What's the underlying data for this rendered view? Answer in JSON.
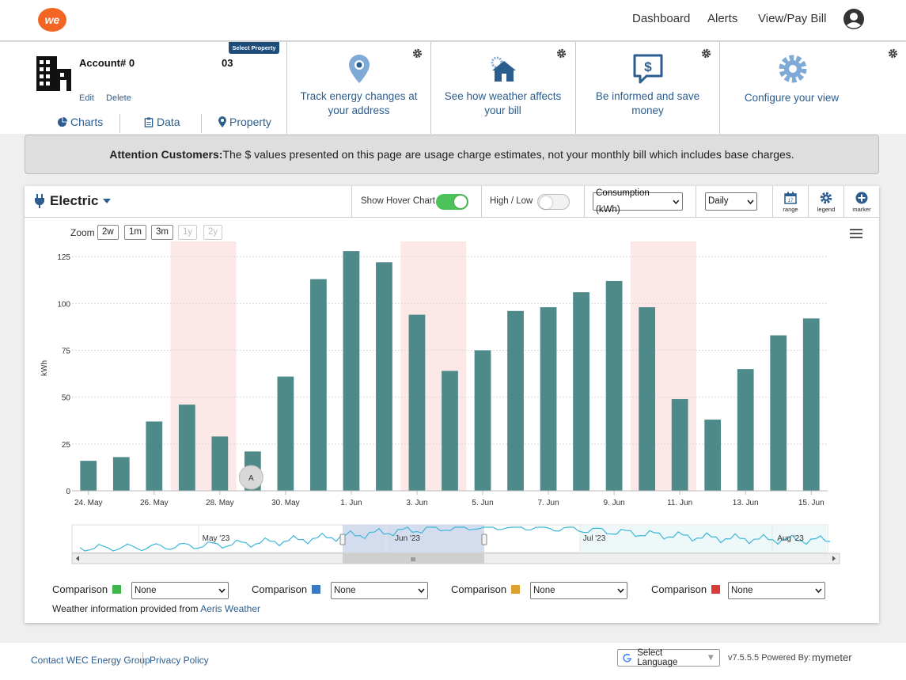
{
  "nav": {
    "logo_text": "we",
    "links": [
      "Dashboard",
      "Alerts",
      "View/Pay Bill"
    ]
  },
  "account": {
    "label": "Account# 0",
    "number_suffix": "03",
    "select_property": "Select Property",
    "edit": "Edit",
    "delete": "Delete",
    "tabs": [
      "Charts",
      "Data",
      "Property"
    ]
  },
  "features": [
    {
      "text": "Track energy changes at your address",
      "icon": "location-pin-icon"
    },
    {
      "text": "See how weather affects your bill",
      "icon": "weather-house-icon"
    },
    {
      "text": "Be informed and save money",
      "icon": "dollar-chat-icon"
    },
    {
      "text": "Configure your view",
      "icon": "gear-icon"
    }
  ],
  "attention": {
    "title": "Attention Customers:",
    "message": "The $ values presented on this page are usage charge estimates, not your monthly bill which includes base charges."
  },
  "toolbar": {
    "service": "Electric",
    "show_hover_chart": "Show Hover Chart",
    "show_hover_chart_on": true,
    "high_low": "High / Low",
    "high_low_on": false,
    "metric": "Consumption (kWh)",
    "interval": "Daily",
    "range": "range",
    "legend": "legend",
    "marker": "marker"
  },
  "zoom": {
    "label": "Zoom",
    "options": [
      "2w",
      "1m",
      "3m",
      "1y",
      "2y"
    ],
    "disabled": [
      false,
      false,
      false,
      true,
      true
    ]
  },
  "chart_data": {
    "type": "bar",
    "ylabel": "kWh",
    "ylim": [
      0,
      130
    ],
    "yticks": [
      0,
      25,
      50,
      75,
      100,
      125
    ],
    "x_tick_labels": [
      "24. May",
      "26. May",
      "28. May",
      "30. May",
      "1. Jun",
      "3. Jun",
      "5. Jun",
      "7. Jun",
      "9. Jun",
      "11. Jun",
      "13. Jun",
      "15. Jun"
    ],
    "categories": [
      "2023-05-24",
      "2023-05-25",
      "2023-05-26",
      "2023-05-27",
      "2023-05-28",
      "2023-05-29",
      "2023-05-30",
      "2023-05-31",
      "2023-06-01",
      "2023-06-02",
      "2023-06-03",
      "2023-06-04",
      "2023-06-05",
      "2023-06-06",
      "2023-06-07",
      "2023-06-08",
      "2023-06-09",
      "2023-06-10",
      "2023-06-11",
      "2023-06-12",
      "2023-06-13",
      "2023-06-14",
      "2023-06-15"
    ],
    "values": [
      16,
      18,
      37,
      46,
      29,
      21,
      61,
      113,
      128,
      122,
      94,
      64,
      75,
      96,
      98,
      106,
      112,
      98,
      49,
      38,
      65,
      83,
      92
    ],
    "weekend_bands": [
      [
        "2023-05-27",
        "2023-05-28"
      ],
      [
        "2023-06-03",
        "2023-06-04"
      ],
      [
        "2023-06-10",
        "2023-06-11"
      ]
    ],
    "bar_color": "#4f8a8b",
    "weekend_color": "#fde8e8",
    "marker": {
      "label": "A",
      "date": "2023-05-29"
    },
    "navigator_labels": [
      "May '23",
      "Jun '23",
      "Jul '23",
      "Aug '23"
    ],
    "navigator_handle": "III"
  },
  "comparisons": [
    {
      "label": "Comparison",
      "color": "#3cb84a",
      "value": "None"
    },
    {
      "label": "Comparison",
      "color": "#3b7ac0",
      "value": "None"
    },
    {
      "label": "Comparison",
      "color": "#e0a030",
      "value": "None"
    },
    {
      "label": "Comparison",
      "color": "#d93a3a",
      "value": "None"
    }
  ],
  "weather": {
    "prefix": "Weather information provided from ",
    "link": "Aeris Weather"
  },
  "footer": {
    "contact": "Contact WEC Energy Group",
    "privacy": "Privacy Policy",
    "language": "Select Language",
    "version": "v7.5.5.5 Powered By:",
    "brand": "mymeter"
  }
}
